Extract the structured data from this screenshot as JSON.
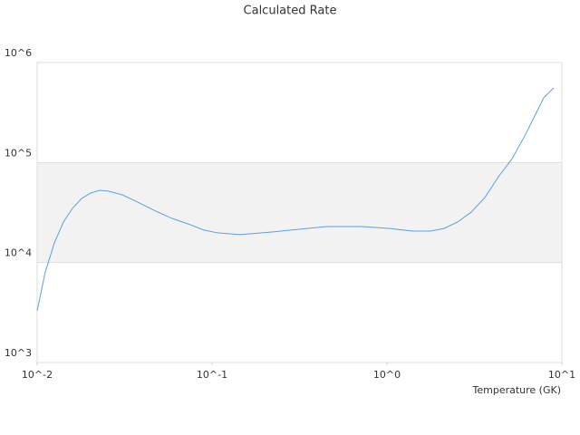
{
  "chart_data": {
    "type": "line",
    "title": "Calculated Rate",
    "x_label": "Temperature (GK)",
    "x_scale": "log",
    "y_scale": "log",
    "grid": true,
    "xlim": [
      0.01,
      10
    ],
    "ylim": [
      1000,
      1000000
    ],
    "xticks": [
      {
        "value": 0.01,
        "label": "10^-2"
      },
      {
        "value": 0.1,
        "label": "10^-1"
      },
      {
        "value": 1,
        "label": "10^0"
      },
      {
        "value": 10,
        "label": "10^1"
      }
    ],
    "yticks": [
      {
        "value": 1000,
        "label": "10^3"
      },
      {
        "value": 10000,
        "label": "10^4"
      },
      {
        "value": 100000,
        "label": "10^5"
      },
      {
        "value": 1000000,
        "label": "10^6"
      }
    ],
    "series": [
      {
        "color": "#5a9fe0",
        "x": [
          0.01,
          0.01113,
          0.01254,
          0.01413,
          0.01592,
          0.01795,
          0.02023,
          0.0228,
          0.02567,
          0.0307,
          0.0367,
          0.0466,
          0.0591,
          0.0751,
          0.0898,
          0.1074,
          0.1448,
          0.2198,
          0.3143,
          0.4498,
          0.7244,
          1.037,
          1.397,
          1.774,
          2.12,
          2.535,
          3.03,
          3.63,
          4.34,
          5.19,
          6.21,
          7.87,
          8.97
        ],
        "values": [
          3290,
          8050,
          15700,
          25400,
          34800,
          43700,
          49500,
          52700,
          51600,
          47500,
          41000,
          33300,
          27600,
          23900,
          21100,
          19800,
          19000,
          20200,
          21500,
          22900,
          22900,
          21900,
          20600,
          20600,
          21900,
          25400,
          31900,
          44700,
          72100,
          109000,
          192000,
          444000,
          557000
        ]
      }
    ]
  }
}
